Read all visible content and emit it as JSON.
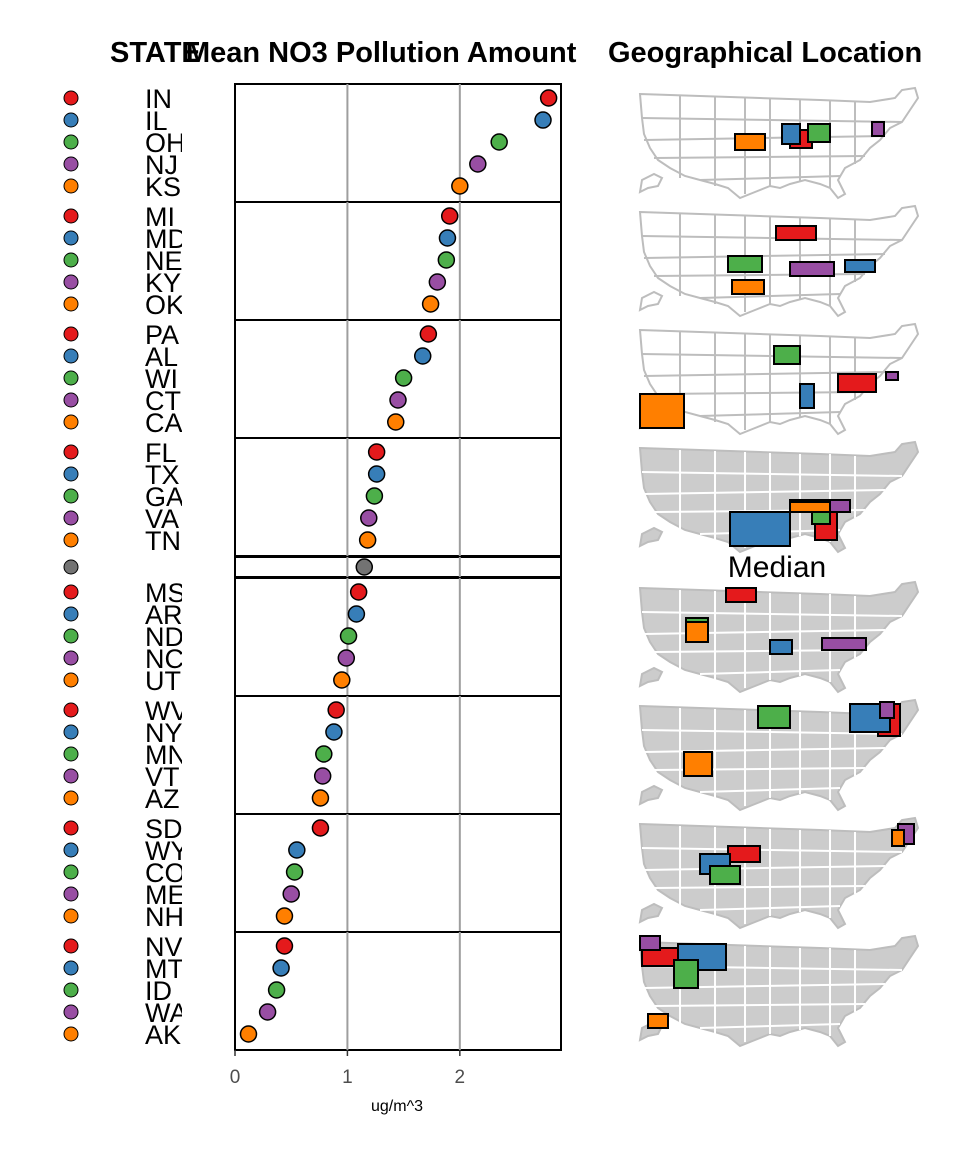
{
  "chart_data": {
    "type": "scatter",
    "chart_kind": "linked micromap (dot plot with state maps)",
    "title": "",
    "column_titles": {
      "states": "STATE",
      "dots": "Mean NO3 Pollution Amount",
      "maps": "Geographical Location"
    },
    "xlabel": "ug/m^3",
    "xlim": [
      0,
      2.9
    ],
    "xticks": [
      0,
      1,
      2
    ],
    "grid": true,
    "median_label": "Median",
    "group_colors": [
      "#e41a1c",
      "#377eb8",
      "#4daf4a",
      "#984ea3",
      "#ff7f00"
    ],
    "median_color": "#737373",
    "groups": [
      {
        "states": [
          "IN",
          "IL",
          "OH",
          "NJ",
          "KS"
        ],
        "values": [
          2.79,
          2.74,
          2.35,
          2.16,
          2.0
        ]
      },
      {
        "states": [
          "MI",
          "MD",
          "NE",
          "KY",
          "OK"
        ],
        "values": [
          1.91,
          1.89,
          1.88,
          1.8,
          1.74
        ]
      },
      {
        "states": [
          "PA",
          "AL",
          "WI",
          "CT",
          "CA"
        ],
        "values": [
          1.72,
          1.67,
          1.5,
          1.45,
          1.43
        ]
      },
      {
        "states": [
          "FL",
          "TX",
          "GA",
          "VA",
          "TN"
        ],
        "values": [
          1.26,
          1.26,
          1.24,
          1.19,
          1.18
        ]
      },
      {
        "states": [
          "MS",
          "AR",
          "ND",
          "NC",
          "UT"
        ],
        "values": [
          1.1,
          1.08,
          1.01,
          0.99,
          0.95
        ]
      },
      {
        "states": [
          "WV",
          "NY",
          "MN",
          "VT",
          "AZ"
        ],
        "values": [
          0.9,
          0.88,
          0.79,
          0.78,
          0.76
        ]
      },
      {
        "states": [
          "SD",
          "WY",
          "CO",
          "ME",
          "NH"
        ],
        "values": [
          0.76,
          0.55,
          0.53,
          0.5,
          0.44
        ]
      },
      {
        "states": [
          "NV",
          "MT",
          "ID",
          "WA",
          "AK"
        ],
        "values": [
          0.44,
          0.41,
          0.37,
          0.29,
          0.12
        ]
      }
    ],
    "median": {
      "value": 1.15
    }
  }
}
